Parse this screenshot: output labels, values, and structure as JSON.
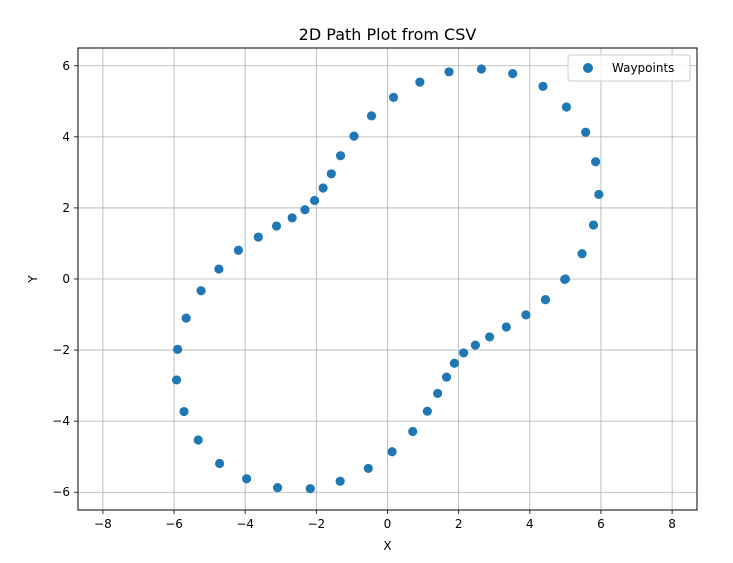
{
  "chart_data": {
    "type": "scatter",
    "title": "2D Path Plot from CSV",
    "xlabel": "X",
    "ylabel": "Y",
    "xlim": [
      -8.7,
      8.7
    ],
    "ylim": [
      -6.5,
      6.5
    ],
    "xticks": [
      -8,
      -6,
      -4,
      -2,
      0,
      2,
      4,
      6,
      8
    ],
    "yticks": [
      -6,
      -4,
      -2,
      0,
      2,
      4,
      6
    ],
    "grid": true,
    "legend_position": "top-right",
    "series": [
      {
        "name": "Waypoints",
        "color": "#1f77b4",
        "points": [
          [
            5.0,
            0.0
          ],
          [
            5.47,
            0.71
          ],
          [
            5.79,
            1.52
          ],
          [
            5.94,
            2.38
          ],
          [
            5.85,
            3.3
          ],
          [
            5.57,
            4.13
          ],
          [
            5.03,
            4.84
          ],
          [
            4.37,
            5.42
          ],
          [
            3.52,
            5.78
          ],
          [
            2.64,
            5.91
          ],
          [
            1.73,
            5.83
          ],
          [
            0.91,
            5.54
          ],
          [
            0.17,
            5.11
          ],
          [
            -0.45,
            4.59
          ],
          [
            -0.94,
            4.02
          ],
          [
            -1.32,
            3.47
          ],
          [
            -1.58,
            2.96
          ],
          [
            -1.81,
            2.56
          ],
          [
            -2.05,
            2.21
          ],
          [
            -2.32,
            1.95
          ],
          [
            -2.68,
            1.72
          ],
          [
            -3.12,
            1.49
          ],
          [
            -3.63,
            1.18
          ],
          [
            -4.19,
            0.81
          ],
          [
            -4.74,
            0.28
          ],
          [
            -5.24,
            -0.33
          ],
          [
            -5.66,
            -1.1
          ],
          [
            -5.9,
            -1.98
          ],
          [
            -5.93,
            -2.84
          ],
          [
            -5.72,
            -3.73
          ],
          [
            -5.32,
            -4.53
          ],
          [
            -4.72,
            -5.19
          ],
          [
            -3.96,
            -5.62
          ],
          [
            -3.09,
            -5.87
          ],
          [
            -2.17,
            -5.9
          ],
          [
            -1.33,
            -5.69
          ],
          [
            -0.54,
            -5.33
          ],
          [
            0.13,
            -4.86
          ],
          [
            0.71,
            -4.29
          ],
          [
            1.12,
            -3.72
          ],
          [
            1.41,
            -3.22
          ],
          [
            1.66,
            -2.76
          ],
          [
            1.88,
            -2.37
          ],
          [
            2.14,
            -2.08
          ],
          [
            2.47,
            -1.86
          ],
          [
            2.87,
            -1.63
          ],
          [
            3.34,
            -1.35
          ],
          [
            3.89,
            -1.01
          ],
          [
            4.44,
            -0.58
          ],
          [
            4.98,
            -0.01
          ]
        ]
      }
    ]
  }
}
